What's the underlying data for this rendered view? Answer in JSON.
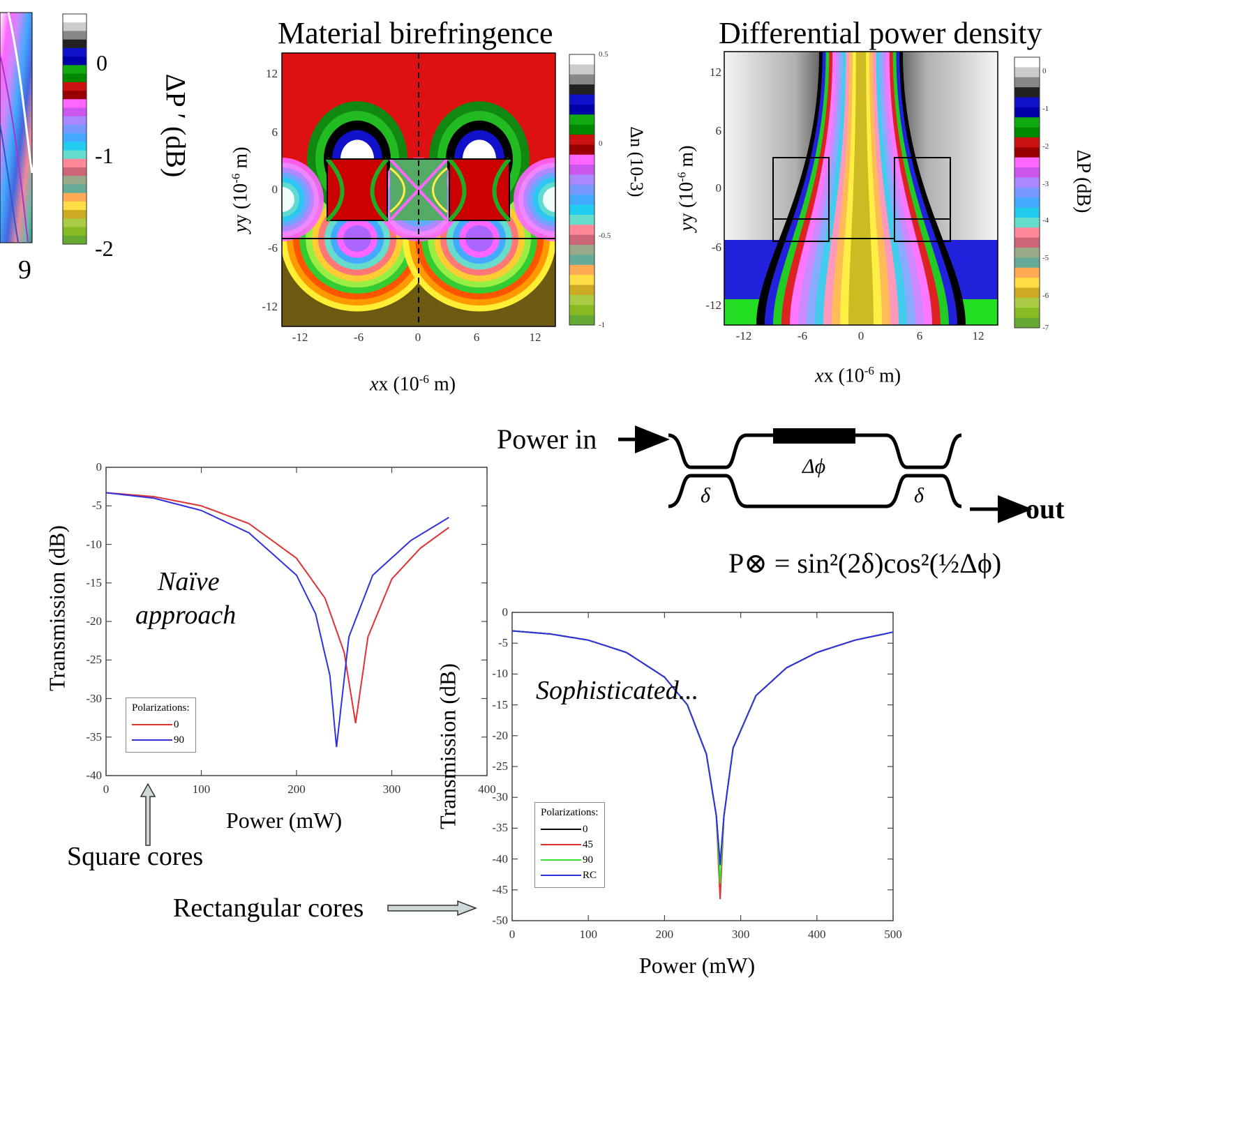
{
  "panel_left_partial": {
    "x_tick": "9",
    "colorbar_ticks": [
      "0",
      "-1",
      "-2"
    ],
    "colorbar_label": "ΔP ′ (dB)"
  },
  "panel_birefringence": {
    "title": "Material birefringence",
    "y_label_main": "y (10",
    "y_label_exp": "-6",
    "y_label_end": " m)",
    "x_label_main": "x (10",
    "x_label_exp": "-6",
    "x_label_end": " m)",
    "colorbar_label": "Δn (10-3)",
    "colorbar_ticks": [
      "0.5",
      "0",
      "-0.5",
      "-1"
    ]
  },
  "panel_power_density": {
    "title": "Differential power density",
    "colorbar_label": "ΔP (dB)",
    "colorbar_ticks": [
      "0",
      "-1",
      "-2",
      "-3",
      "-4",
      "-5",
      "-6",
      "-7"
    ]
  },
  "schematic": {
    "power_in": "Power in",
    "out": "out",
    "delta": "δ",
    "delta_phi": "Δϕ",
    "formula": "P⊗ = sin²(2δ)cos²(½Δϕ)"
  },
  "annotations": {
    "naive_1": "Naïve",
    "naive_2": "approach",
    "sophisticated": "Sophisticated...",
    "square_cores": "Square cores",
    "rectangular_cores": "Rectangular cores"
  },
  "colors": {
    "red": "#e03030",
    "blue": "#3030e0",
    "black": "#000000",
    "green": "#30e030"
  },
  "chart_data": [
    {
      "type": "heatmap",
      "title": "Material birefringence",
      "xlabel": "x (10-6 m)",
      "ylabel": "y (10-6 m)",
      "x_ticks": [
        "-12",
        "-6",
        "0",
        "6",
        "12"
      ],
      "y_ticks": [
        "12",
        "6",
        "0",
        "-6",
        "-12"
      ],
      "xlim": [
        -14,
        14
      ],
      "ylim": [
        -14,
        14
      ],
      "colorbar": {
        "label": "Δn (10-3)",
        "range": [
          -1,
          0.5
        ],
        "ticks": [
          "0.5",
          "0",
          "-0.5",
          "-1"
        ]
      }
    },
    {
      "type": "heatmap",
      "title": "Differential power density",
      "xlabel": "x (10-6 m)",
      "ylabel": "y (10-6 m)",
      "x_ticks": [
        "-12",
        "-6",
        "0",
        "6",
        "12"
      ],
      "y_ticks": [
        "12",
        "6",
        "0",
        "-6",
        "-12"
      ],
      "xlim": [
        -14,
        14
      ],
      "ylim": [
        -14,
        14
      ],
      "colorbar": {
        "label": "ΔP (dB)",
        "range": [
          -7,
          0
        ],
        "ticks": [
          "0",
          "-1",
          "-2",
          "-3",
          "-4",
          "-5",
          "-6",
          "-7"
        ]
      }
    },
    {
      "type": "line",
      "xlabel": "Power (mW)",
      "ylabel": "Transmission (dB)",
      "xlim": [
        0,
        400
      ],
      "ylim": [
        -40,
        0
      ],
      "x_ticks": [
        "0",
        "100",
        "200",
        "300",
        "400"
      ],
      "y_ticks": [
        "0",
        "-5",
        "-10",
        "-15",
        "-20",
        "-25",
        "-30",
        "-35",
        "-40"
      ],
      "legend_title": "Polarizations:",
      "legend_placement": "bottom-left",
      "series": [
        {
          "name": "0",
          "color": "#e03030",
          "dip_x": 262,
          "dip_y": -33.2,
          "x": [
            0,
            50,
            100,
            150,
            200,
            230,
            250,
            262,
            275,
            300,
            330,
            360
          ],
          "y": [
            -3.3,
            -3.8,
            -5.0,
            -7.3,
            -11.8,
            -17.0,
            -24.0,
            -33.2,
            -22.0,
            -14.5,
            -10.5,
            -7.8
          ]
        },
        {
          "name": "90",
          "color": "#3030e0",
          "dip_x": 242,
          "dip_y": -36.3,
          "x": [
            0,
            50,
            100,
            150,
            200,
            220,
            235,
            242,
            255,
            280,
            320,
            360
          ],
          "y": [
            -3.3,
            -4.0,
            -5.6,
            -8.5,
            -14.0,
            -19.0,
            -27.0,
            -36.3,
            -22.0,
            -14.0,
            -9.5,
            -6.5
          ]
        }
      ]
    },
    {
      "type": "line",
      "xlabel": "Power (mW)",
      "ylabel": "Transmission (dB)",
      "xlim": [
        0,
        500
      ],
      "ylim": [
        -50,
        0
      ],
      "x_ticks": [
        "0",
        "100",
        "200",
        "300",
        "400",
        "500"
      ],
      "y_ticks": [
        "0",
        "-5",
        "-10",
        "-15",
        "-20",
        "-25",
        "-30",
        "-35",
        "-40",
        "-45",
        "-50"
      ],
      "legend_title": "Polarizations:",
      "legend_placement": "bottom-left",
      "series": [
        {
          "name": "0",
          "color": "#000000",
          "dip_y": -41.0
        },
        {
          "name": "45",
          "color": "#e03030",
          "dip_y": -46.5
        },
        {
          "name": "90",
          "color": "#30e030",
          "dip_y": -44.0
        },
        {
          "name": "RC",
          "color": "#3030e0",
          "dip_y": -41.0
        }
      ],
      "shared_curve": {
        "x": [
          0,
          50,
          100,
          150,
          200,
          230,
          255,
          268,
          273,
          278,
          290,
          320,
          360,
          400,
          450,
          500
        ],
        "y": [
          -3.0,
          -3.5,
          -4.5,
          -6.5,
          -10.5,
          -15.0,
          -23.0,
          -33.0,
          -41.0,
          -33.0,
          -22.0,
          -13.5,
          -9.0,
          -6.5,
          -4.5,
          -3.2
        ]
      }
    }
  ]
}
